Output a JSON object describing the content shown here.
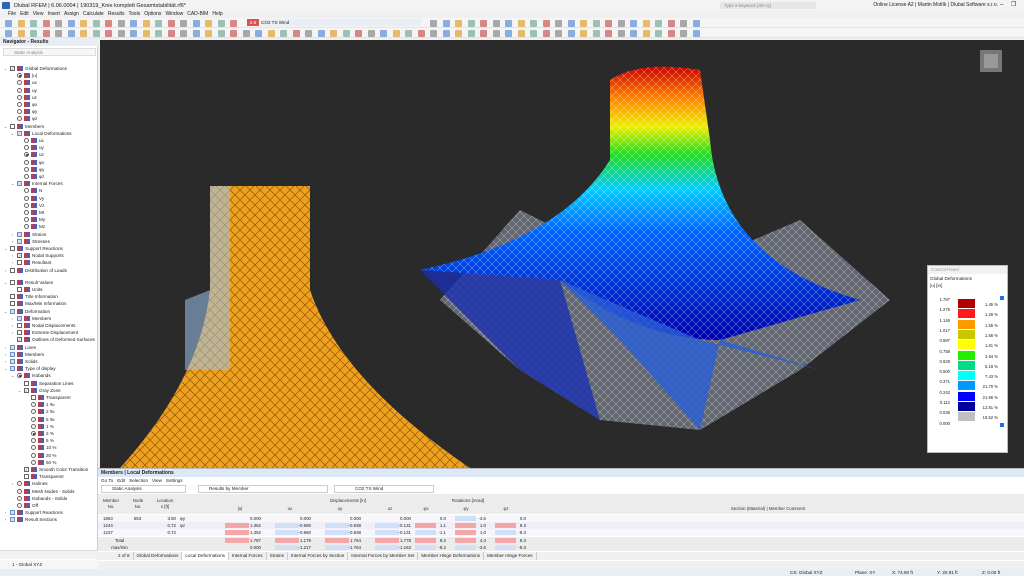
{
  "window": {
    "title": "Dlubal RFEM | 6.06.0004 | 190319_Knie komplett Gesamtstabilität.rf6*",
    "search_placeholder": "Type a keyword (Alt+Q)",
    "license": "Online License A2 | Martin Motlík | Dlubal Software s.r.o.",
    "controls": "– ❐ ✕"
  },
  "menu": [
    "File",
    "Edit",
    "View",
    "Insert",
    "Assign",
    "Calculate",
    "Results",
    "Tools",
    "Options",
    "Window",
    "CAD-BIM",
    "Help"
  ],
  "load_case": {
    "badge": "2.8",
    "code": "CO2",
    "name": "TS Wind",
    "badge_color": "#d9534f"
  },
  "navigator": {
    "title": "Navigator - Results",
    "analysis": "Static Analysis",
    "items": [
      {
        "l": 0,
        "c": "cb",
        "on": true,
        "e": "v",
        "t": "Global Deformations"
      },
      {
        "l": 1,
        "c": "rb",
        "on": true,
        "t": "|u|"
      },
      {
        "l": 1,
        "c": "rb",
        "t": "ux"
      },
      {
        "l": 1,
        "c": "rb",
        "t": "uy"
      },
      {
        "l": 1,
        "c": "rb",
        "t": "uz"
      },
      {
        "l": 1,
        "c": "rb",
        "t": "φx"
      },
      {
        "l": 1,
        "c": "rb",
        "t": "φy"
      },
      {
        "l": 1,
        "c": "rb",
        "t": "φz"
      },
      {
        "l": 0,
        "c": "cb",
        "e": "v",
        "t": "Members"
      },
      {
        "l": 1,
        "c": "cbb",
        "e": "v",
        "t": "Local Deformations"
      },
      {
        "l": 2,
        "c": "rb",
        "t": "ux"
      },
      {
        "l": 2,
        "c": "rb",
        "t": "uy"
      },
      {
        "l": 2,
        "c": "rb",
        "on": true,
        "t": "uz"
      },
      {
        "l": 2,
        "c": "rb",
        "t": "φx"
      },
      {
        "l": 2,
        "c": "rb",
        "t": "φy"
      },
      {
        "l": 2,
        "c": "rb",
        "t": "φz"
      },
      {
        "l": 1,
        "c": "cbb",
        "e": "v",
        "t": "Internal Forces"
      },
      {
        "l": 2,
        "c": "rb",
        "t": "N"
      },
      {
        "l": 2,
        "c": "rb",
        "t": "Vy"
      },
      {
        "l": 2,
        "c": "rb",
        "t": "Vz"
      },
      {
        "l": 2,
        "c": "rb",
        "t": "Mt"
      },
      {
        "l": 2,
        "c": "rb",
        "t": "My"
      },
      {
        "l": 2,
        "c": "rb",
        "t": "Mz"
      },
      {
        "l": 1,
        "c": "cbb",
        "e": ">",
        "t": "Strains"
      },
      {
        "l": 1,
        "c": "cbb",
        "e": ">",
        "t": "Stresses"
      },
      {
        "l": 0,
        "c": "cb",
        "e": "v",
        "t": "Support Reactions"
      },
      {
        "l": 1,
        "c": "cb",
        "on": true,
        "e": ">",
        "t": "Nodal Supports"
      },
      {
        "l": 1,
        "c": "cb",
        "e": ">",
        "t": "Resultant"
      },
      {
        "l": 0,
        "c": "cb",
        "e": ">",
        "t": "Distribution of Loads"
      },
      {
        "gap": true
      },
      {
        "l": 0,
        "c": "cb",
        "e": "v",
        "t": "Result Values"
      },
      {
        "l": 1,
        "c": "cb",
        "t": "Units"
      },
      {
        "l": 0,
        "c": "cb",
        "t": "Title Information"
      },
      {
        "l": 0,
        "c": "cb",
        "t": "Max/Min Information"
      },
      {
        "l": 0,
        "c": "cbb",
        "e": "v",
        "t": "Deformation"
      },
      {
        "l": 1,
        "c": "cbb",
        "e": ">",
        "t": "Members"
      },
      {
        "l": 1,
        "c": "cb",
        "e": ">",
        "t": "Nodal Displacements"
      },
      {
        "l": 1,
        "c": "cb",
        "e": ">",
        "t": "Extreme Displacement"
      },
      {
        "l": 1,
        "c": "cb",
        "on": true,
        "t": "Outlines of Deformed Surfaces"
      },
      {
        "l": 0,
        "c": "cbb",
        "e": ">",
        "t": "Lines"
      },
      {
        "l": 0,
        "c": "cbb",
        "e": ">",
        "t": "Members"
      },
      {
        "l": 0,
        "c": "cbb",
        "e": ">",
        "t": "Solids"
      },
      {
        "l": 0,
        "c": "cbb",
        "e": "v",
        "t": "Type of display"
      },
      {
        "l": 1,
        "c": "rb",
        "on": true,
        "e": "v",
        "t": "Isobands"
      },
      {
        "l": 2,
        "c": "cb",
        "t": "Separation Lines"
      },
      {
        "l": 2,
        "c": "cb",
        "on": true,
        "e": "v",
        "t": "Gray Zone"
      },
      {
        "l": 3,
        "c": "cb",
        "t": "Transparent"
      },
      {
        "l": 3,
        "c": "rb",
        "t": "1 ‰"
      },
      {
        "l": 3,
        "c": "rb",
        "t": "2 ‰"
      },
      {
        "l": 3,
        "c": "rb",
        "t": "5 ‰"
      },
      {
        "l": 3,
        "c": "rb",
        "t": "1 %"
      },
      {
        "l": 3,
        "c": "rb",
        "on": true,
        "t": "2 %"
      },
      {
        "l": 3,
        "c": "rb",
        "t": "5 %"
      },
      {
        "l": 3,
        "c": "rb",
        "t": "10 %"
      },
      {
        "l": 3,
        "c": "rb",
        "t": "20 %"
      },
      {
        "l": 3,
        "c": "rb",
        "t": "50 %"
      },
      {
        "l": 2,
        "c": "cb",
        "on": true,
        "t": "Smooth Color Transition"
      },
      {
        "l": 2,
        "c": "cb",
        "t": "Transparent"
      },
      {
        "l": 1,
        "c": "rb",
        "e": ">",
        "t": "Isolines"
      },
      {
        "l": 1,
        "c": "rb",
        "t": "Mesh Nodes - Solids"
      },
      {
        "l": 1,
        "c": "rb",
        "t": "Isobands - Solids"
      },
      {
        "l": 1,
        "c": "rb",
        "t": "Off"
      },
      {
        "l": 0,
        "c": "cbb",
        "e": ">",
        "t": "Support Reactions"
      },
      {
        "l": 0,
        "c": "cbb",
        "e": ">",
        "t": "Result Sections"
      }
    ],
    "coord_system": "1 - Global XYZ"
  },
  "control_panel": {
    "title": "Control Panel",
    "heading": "Global Deformations",
    "unit": "|u| [in]",
    "legend": [
      {
        "v": "1.787",
        "c": "#b00000",
        "p": "1.45 %"
      },
      {
        "v": "1.275",
        "c": "#ff1a1a",
        "p": "1.29 %"
      },
      {
        "v": "1.146",
        "c": "#ff9900",
        "p": "1.55 %"
      },
      {
        "v": "1.017",
        "c": "#c8c800",
        "p": "1.56 %"
      },
      {
        "v": "0.887",
        "c": "#ffff00",
        "p": "1.61 %"
      },
      {
        "v": "0.758",
        "c": "#22ee00",
        "p": "2.94 %"
      },
      {
        "v": "0.629",
        "c": "#00dd88",
        "p": "6.18 %"
      },
      {
        "v": "0.500",
        "c": "#00ffff",
        "p": "7.43 %"
      },
      {
        "v": "0.371",
        "c": "#0099ff",
        "p": "21.70 %"
      },
      {
        "v": "0.242",
        "c": "#0000ff",
        "p": "21.96 %"
      },
      {
        "v": "0.112",
        "c": "#000099",
        "p": "12.81 %"
      },
      {
        "v": "0.036",
        "c": "#c0c0c0",
        "p": "19.52 %"
      },
      {
        "v": "0.000",
        "c": "",
        "p": ""
      }
    ]
  },
  "panel": {
    "title": "Members | Local Deformations",
    "menu": [
      "Go To",
      "Edit",
      "Selection",
      "View",
      "Settings"
    ],
    "analysis": "Static Analysis",
    "results_by": "Results by Member",
    "headers": {
      "member": "Member",
      "member_no": "No.",
      "node": "Node",
      "node_no": "No.",
      "location": "Location",
      "location_x": "x [ft]",
      "displacements": "Displacements [in]",
      "u": "|u|",
      "ux": "ux",
      "uy": "uy",
      "uz": "uz",
      "rotations": "Rotations [mrad]",
      "phx": "φx",
      "phy": "φy",
      "phz": "φz",
      "section": "Section (Material) | Member Comment"
    },
    "rows": [
      {
        "member": "1863",
        "node": "653",
        "x": "3.50",
        "tag": "φy",
        "u": "0.000",
        "ux": "0.000",
        "uy": "0.000",
        "uz": "0.000",
        "px": "0.0",
        "py": "-3.6",
        "pz": "0.0"
      },
      {
        "member": "1244",
        "node": "",
        "x": "0.72",
        "tag": "φz",
        "u": "1.362",
        "ux": "-0.980",
        "uy": "-0.938",
        "uz": "-0.131",
        "px": "1.1",
        "py": "1.0",
        "pz": "8.3"
      },
      {
        "member": "1237",
        "node": "",
        "x": "0.72",
        "tag": "",
        "u": "1.362",
        "ux": "-0.980",
        "uy": "-0.938",
        "uz": "-0.131",
        "px": "-1.1",
        "py": "1.0",
        "pz": "-8.3"
      }
    ],
    "totals": [
      {
        "label": "Total",
        "u": "1.787",
        "ux": "1.179",
        "uy": "1.764",
        "uz": "1.778",
        "px": "8.2",
        "py": "4.3",
        "pz": "8.3"
      },
      {
        "label": "max/min",
        "u": "0.000",
        "ux": "-1.217",
        "uy": "-1.764",
        "uz": "-1.163",
        "px": "-8.2",
        "py": "-3.6",
        "pz": "-8.3"
      }
    ],
    "pager": "2 of 8",
    "tabs": [
      "Global Deformations",
      "Local Deformations",
      "Internal Forces",
      "Strains",
      "Internal Forces by Section",
      "Internal Forces by Member Set",
      "Member Hinge Deformations",
      "Member Hinge Forces"
    ],
    "active_tab": 1
  },
  "status": {
    "cs": "CS: Global XYZ",
    "plane": "Plane: XY",
    "x": "X: 74.80 ft",
    "y": "Y: 20.91 ft",
    "z": "Z: 0.00 ft"
  }
}
